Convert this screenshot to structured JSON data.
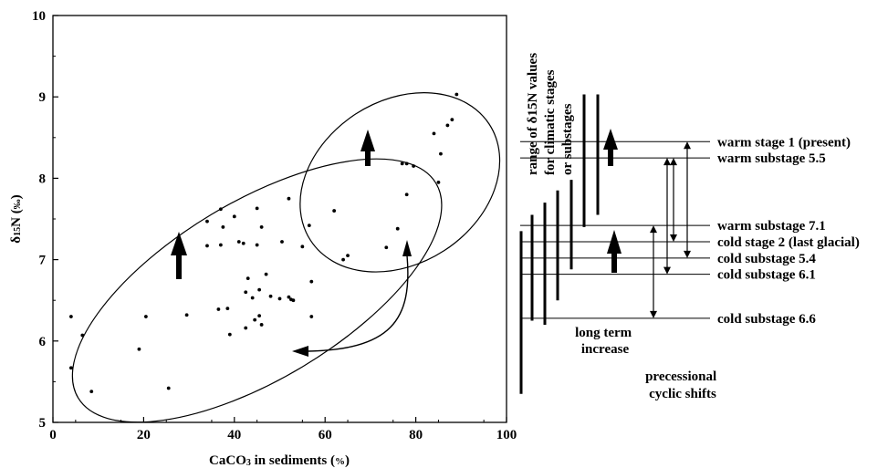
{
  "chart_data": {
    "type": "scatter",
    "xlabel": "CaCO3 in sediments (%)",
    "xlabel_main": "CaCO",
    "xlabel_sub": "3",
    "xlabel_rest": " in sediments (",
    "xlabel_unit": "%",
    "xlabel_close": ")",
    "ylabel": "δ15N (‰)",
    "ylabel_main": "δ",
    "ylabel_sup": "15",
    "ylabel_n": "N (",
    "ylabel_unit": "‰",
    "ylabel_close": ")",
    "xlim": [
      0,
      100
    ],
    "ylim": [
      5,
      10
    ],
    "xticks": [
      "0",
      "20",
      "40",
      "60",
      "80",
      "100"
    ],
    "yticks": [
      "5",
      "6",
      "7",
      "8",
      "9",
      "10"
    ],
    "grid": false,
    "legend": "none",
    "points": [
      [
        4,
        6.3
      ],
      [
        4,
        5.67
      ],
      [
        6.5,
        6.07
      ],
      [
        8.5,
        5.38
      ],
      [
        19,
        5.9
      ],
      [
        20.5,
        6.3
      ],
      [
        25.5,
        5.42
      ],
      [
        29.5,
        6.32
      ],
      [
        34,
        7.47
      ],
      [
        34,
        7.17
      ],
      [
        36.5,
        6.39
      ],
      [
        37,
        7.62
      ],
      [
        37,
        7.18
      ],
      [
        37.5,
        7.4
      ],
      [
        38.5,
        6.4
      ],
      [
        39,
        6.08
      ],
      [
        40,
        7.53
      ],
      [
        41,
        7.22
      ],
      [
        42,
        7.2
      ],
      [
        42.5,
        6.6
      ],
      [
        42.5,
        6.16
      ],
      [
        43,
        6.77
      ],
      [
        44,
        6.53
      ],
      [
        44.5,
        6.26
      ],
      [
        45,
        7.63
      ],
      [
        45,
        7.18
      ],
      [
        45.5,
        6.63
      ],
      [
        45.5,
        6.31
      ],
      [
        46,
        7.4
      ],
      [
        46,
        6.2
      ],
      [
        47,
        6.82
      ],
      [
        48,
        6.55
      ],
      [
        50,
        6.52
      ],
      [
        50.5,
        7.22
      ],
      [
        52,
        6.54
      ],
      [
        52.5,
        6.51
      ],
      [
        53,
        6.5
      ],
      [
        55,
        7.16
      ],
      [
        57,
        6.73
      ],
      [
        57,
        6.3
      ],
      [
        56.5,
        7.42
      ],
      [
        52,
        7.75
      ],
      [
        62,
        7.6
      ],
      [
        64,
        7.0
      ],
      [
        65,
        7.05
      ],
      [
        73.5,
        7.15
      ],
      [
        76,
        7.38
      ],
      [
        77,
        8.18
      ],
      [
        78,
        8.18
      ],
      [
        78,
        7.8
      ],
      [
        79.5,
        8.15
      ],
      [
        84,
        8.55
      ],
      [
        85,
        7.95
      ],
      [
        85.5,
        8.3
      ],
      [
        87,
        8.65
      ],
      [
        88,
        8.72
      ],
      [
        89,
        9.03
      ]
    ],
    "ellipses": [
      {
        "center": [
          45,
          6.62
        ],
        "rx": 46,
        "ry": 1.09,
        "angle_deg": 31
      },
      {
        "center": [
          76.5,
          7.95
        ],
        "rx": 23.5,
        "ry": 1.0,
        "angle_deg": 33
      }
    ]
  },
  "side_panel": {
    "heading": [
      "range of δ15N values",
      "for climatic stages",
      "or substages"
    ],
    "heading_sup": "15",
    "stages": [
      {
        "label": "warm stage 1 (present)",
        "value": 8.45
      },
      {
        "label": "warm substage 5.5",
        "value": 8.25
      },
      {
        "label": "warm substage 7.1",
        "value": 7.42
      },
      {
        "label": "cold stage 2 (last glacial)",
        "value": 7.22
      },
      {
        "label": "cold substage 5.4",
        "value": 7.02
      },
      {
        "label": "cold substage 6.1",
        "value": 6.82
      },
      {
        "label": "cold substage 6.6",
        "value": 6.28
      }
    ],
    "note_long_term": [
      "long term",
      "increase"
    ],
    "note_precessional": [
      "precessional",
      "cyclic shifts"
    ]
  }
}
